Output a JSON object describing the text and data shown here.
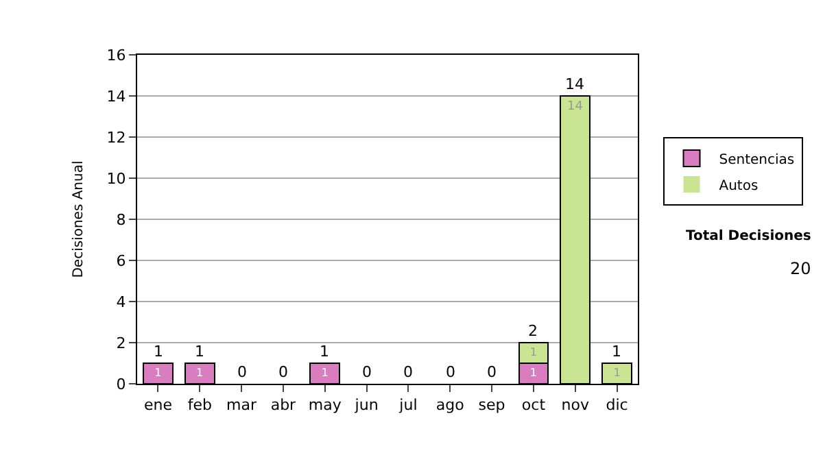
{
  "chart_data": {
    "type": "bar",
    "stacked": true,
    "ylabel": "Decisiones Anual",
    "categories": [
      "ene",
      "feb",
      "mar",
      "abr",
      "may",
      "jun",
      "jul",
      "ago",
      "sep",
      "oct",
      "nov",
      "dic"
    ],
    "series": [
      {
        "name": "Sentencias",
        "color": "#d97cc0",
        "values": [
          1,
          1,
          0,
          0,
          1,
          0,
          0,
          0,
          0,
          1,
          0,
          0
        ],
        "value_labels": [
          "1",
          "1",
          null,
          null,
          "1",
          null,
          null,
          null,
          null,
          "1",
          null,
          null
        ]
      },
      {
        "name": "Autos",
        "color": "#c9e591",
        "values": [
          0,
          0,
          0,
          0,
          0,
          0,
          0,
          0,
          0,
          1,
          14,
          1
        ],
        "value_labels": [
          null,
          null,
          null,
          null,
          null,
          null,
          null,
          null,
          null,
          "1",
          "14",
          "1"
        ]
      }
    ],
    "totals": [
      "1",
      "1",
      "0",
      "0",
      "1",
      "0",
      "0",
      "0",
      "0",
      "2",
      "14",
      "1"
    ],
    "ylim": [
      0,
      16
    ],
    "yticks": [
      0,
      2,
      4,
      6,
      8,
      10,
      12,
      14,
      16
    ],
    "grid": "y",
    "legend": "right",
    "annotations": [
      "Total Decisiones",
      "20"
    ]
  }
}
